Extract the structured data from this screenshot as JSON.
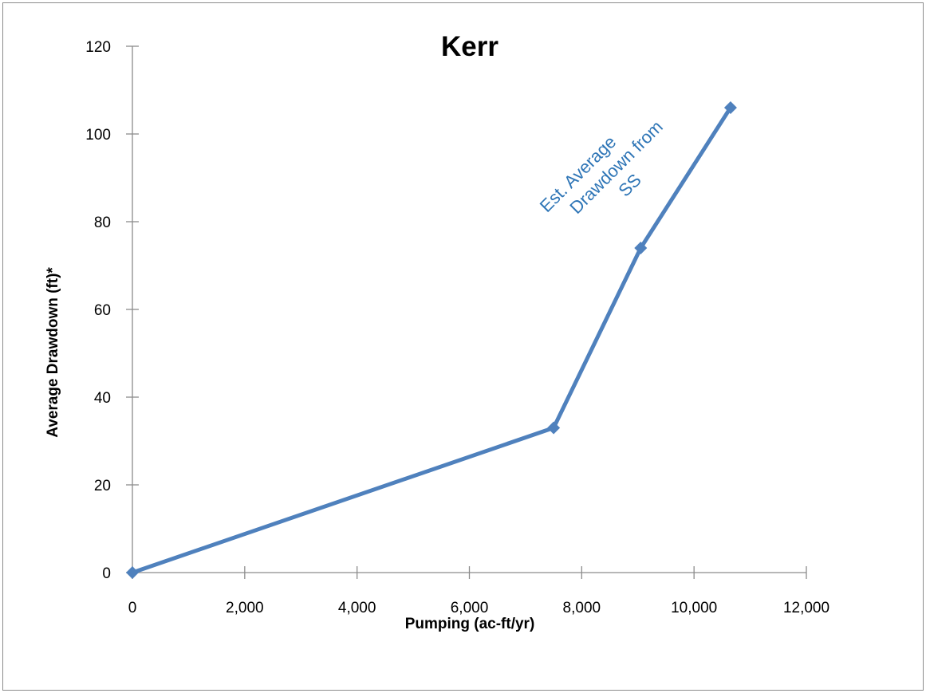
{
  "chart_data": {
    "type": "line",
    "title": "Kerr",
    "xlabel": "Pumping (ac-ft/yr)",
    "ylabel": "Average Drawdown (ft)*",
    "xlim": [
      0,
      12000
    ],
    "ylim": [
      0,
      120
    ],
    "xticks": [
      0,
      2000,
      4000,
      6000,
      8000,
      10000,
      12000
    ],
    "xtick_labels": [
      "0",
      "2,000",
      "4,000",
      "6,000",
      "8,000",
      "10,000",
      "12,000"
    ],
    "yticks": [
      0,
      20,
      40,
      60,
      80,
      100,
      120
    ],
    "ytick_labels": [
      "0",
      "20",
      "40",
      "60",
      "80",
      "100",
      "120"
    ],
    "grid": false,
    "legend": "none",
    "series": [
      {
        "color": "#4f81bd",
        "marker": "diamond",
        "x": [
          0,
          7500,
          9050,
          10650
        ],
        "y": [
          0,
          33,
          74,
          106
        ]
      }
    ],
    "annotations": [
      {
        "lines": [
          "Est. Average",
          "Drawdown from",
          "SS"
        ],
        "color": "#2e75b6",
        "rotation_deg": -45
      }
    ]
  }
}
